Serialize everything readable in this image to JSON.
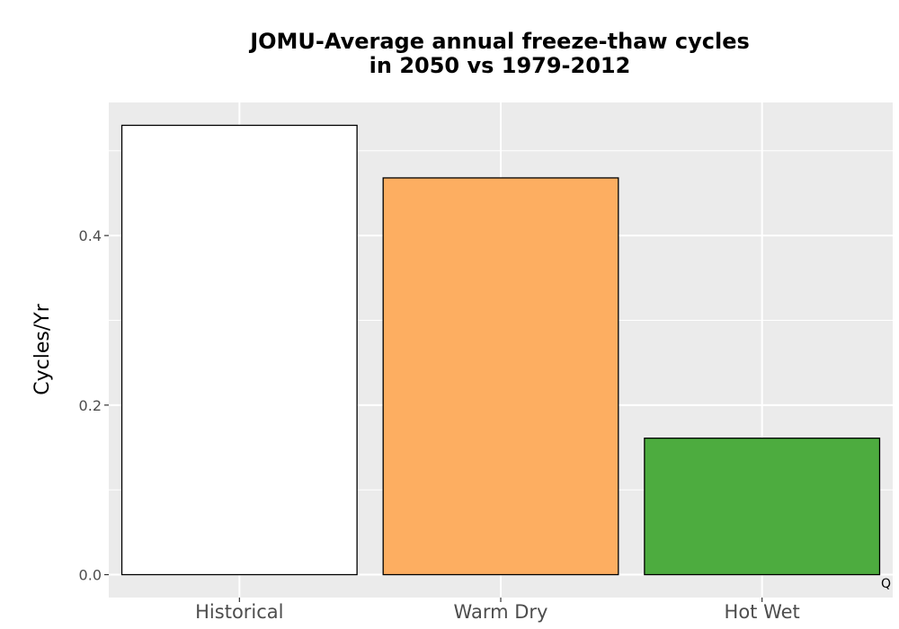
{
  "chart_data": {
    "type": "bar",
    "title": "JOMU-Average annual freeze-thaw cycles in 2050 vs 1979-2012",
    "title_lines": [
      "JOMU-Average annual freeze-thaw cycles",
      "in 2050 vs 1979-2012"
    ],
    "xlabel": "",
    "ylabel": "Cycles/Yr",
    "categories": [
      "Historical",
      "Warm Dry",
      "Hot Wet"
    ],
    "values": [
      0.53,
      0.468,
      0.161
    ],
    "colors": [
      "#ffffff",
      "#fdae61",
      "#4dac3f"
    ],
    "bar_outline_color": "#000000",
    "yticks": [
      0.0,
      0.2,
      0.4
    ],
    "ytick_labels": [
      "0.0",
      "0.2",
      "0.4"
    ],
    "ylim": [
      -0.027,
      0.557
    ],
    "grid": true,
    "panel_background": "#ebebeb",
    "grid_color": "#ffffff",
    "legend": "none",
    "corner_note": "Q"
  }
}
